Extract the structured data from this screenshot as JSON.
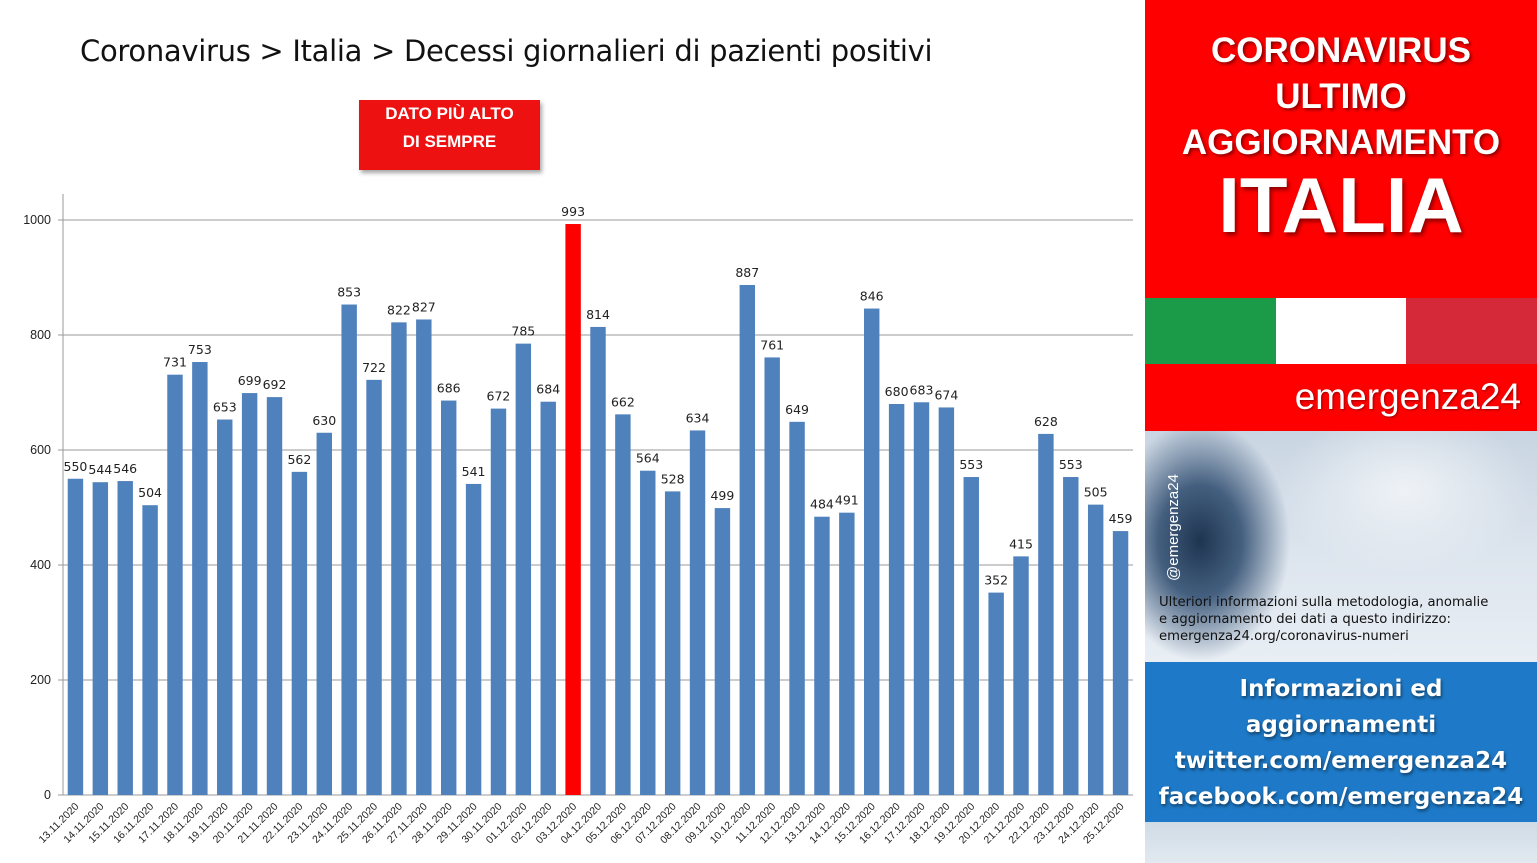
{
  "title": "Coronavirus > Italia > Decessi giornalieri di pazienti positivi",
  "callout": {
    "line1": "DATO PIÙ ALTO",
    "line2": "DI SEMPRE"
  },
  "header": {
    "line1": "CORONAVIRUS",
    "line2": "ULTIMO",
    "line3": "AGGIORNAMENTO",
    "line4": "ITALIA"
  },
  "brand": "emergenza24",
  "handle": "@emergenza24",
  "info": {
    "line1": "Ulteriori informazioni sulla metodologia, anomalie",
    "line2": "e aggiornamento dei dati a questo indirizzo:",
    "line3": "emergenza24.org/coronavirus-numeri"
  },
  "social": {
    "line1": "Informazioni ed",
    "line2": "aggiornamenti",
    "line3": "twitter.com/emergenza24",
    "line4": "facebook.com/emergenza24"
  },
  "colors": {
    "bar": "#4f81bd",
    "highlight": "#ff0000",
    "panel_red": "#ff0000",
    "panel_blue": "#1e7ac8"
  },
  "chart_data": {
    "type": "bar",
    "categories": [
      "13.11.2020",
      "14.11.2020",
      "15.11.2020",
      "16.11.2020",
      "17.11.2020",
      "18.11.2020",
      "19.11.2020",
      "20.11.2020",
      "21.11.2020",
      "22.11.2020",
      "23.11.2020",
      "24.11.2020",
      "25.11.2020",
      "26.11.2020",
      "27.11.2020",
      "28.11.2020",
      "29.11.2020",
      "30.11.2020",
      "01.12.2020",
      "02.12.2020",
      "03.12.2020",
      "04.12.2020",
      "05.12.2020",
      "06.12.2020",
      "07.12.2020",
      "08.12.2020",
      "09.12.2020",
      "10.12.2020",
      "11.12.2020",
      "12.12.2020",
      "13.12.2020",
      "14.12.2020",
      "15.12.2020",
      "16.12.2020",
      "17.12.2020",
      "18.12.2020",
      "19.12.2020",
      "20.12.2020",
      "21.12.2020",
      "22.12.2020",
      "23.12.2020",
      "24.12.2020",
      "25.12.2020"
    ],
    "values": [
      550,
      544,
      546,
      504,
      731,
      753,
      653,
      699,
      692,
      562,
      630,
      853,
      722,
      822,
      827,
      686,
      541,
      672,
      785,
      684,
      993,
      814,
      662,
      564,
      528,
      634,
      499,
      887,
      761,
      649,
      484,
      491,
      846,
      680,
      683,
      674,
      553,
      352,
      415,
      628,
      553,
      505,
      459
    ],
    "highlight_index": 20,
    "ylim": [
      0,
      1000
    ],
    "yticks": [
      0,
      200,
      400,
      600,
      800,
      1000
    ],
    "grid": true,
    "legend": "none"
  }
}
